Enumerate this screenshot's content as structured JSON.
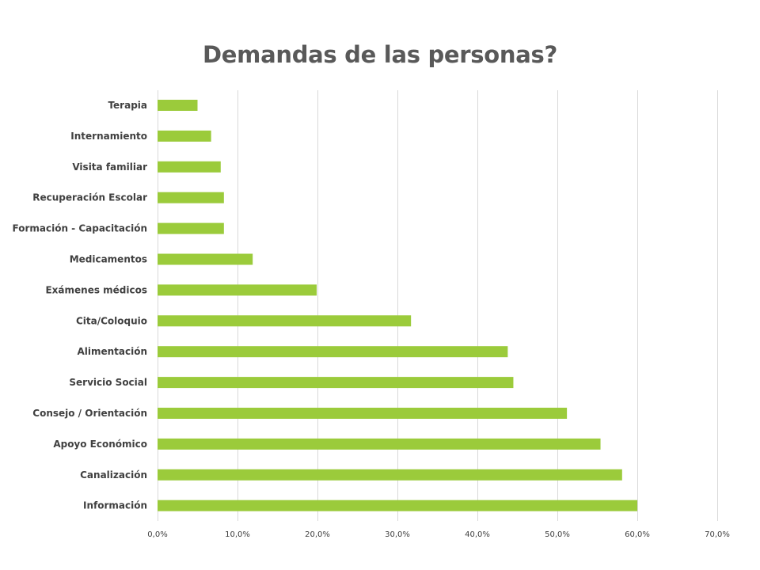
{
  "chart_data": {
    "type": "bar",
    "orientation": "horizontal",
    "title": "Demandas  de las personas?",
    "xlabel": "",
    "ylabel": "",
    "categories": [
      "Terapia",
      "Internamiento",
      "Visita familiar",
      "Recuperación Escolar",
      "Formación - Capacitación",
      "Medicamentos",
      "Exámenes médicos",
      "Cita/Coloquio",
      "Alimentación",
      "Servicio Social",
      "Consejo / Orientación",
      "Apoyo Económico",
      "Canalización",
      "Información"
    ],
    "values": [
      5.0,
      6.7,
      7.9,
      8.3,
      8.3,
      11.9,
      19.9,
      31.7,
      43.8,
      44.5,
      51.2,
      55.4,
      58.1,
      60.0
    ],
    "value_unit": "%",
    "xlim": [
      0,
      70
    ],
    "x_ticks": [
      0,
      10,
      20,
      30,
      40,
      50,
      60,
      70
    ],
    "x_tick_labels": [
      "0,0%",
      "10,0%",
      "20,0%",
      "30,0%",
      "40,0%",
      "50,0%",
      "60,0%",
      "70,0%"
    ],
    "grid": "vertical",
    "legend": "none",
    "colors": {
      "bar": "#9bcb3b",
      "title": "#595959",
      "label": "#404040",
      "grid": "#d9d9d9"
    }
  }
}
